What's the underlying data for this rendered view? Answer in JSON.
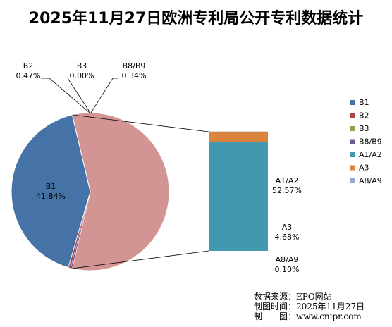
{
  "title": "2025年11月27日欧洲专利局公开专利数据统计",
  "chart_data": {
    "type": "pie",
    "categories": [
      "B1",
      "B2",
      "B3",
      "B8/B9",
      "A1/A2",
      "A3",
      "A8/A9"
    ],
    "values": [
      41.84,
      0.47,
      0.0,
      0.34,
      52.57,
      4.68,
      0.1
    ],
    "labels": [
      "41.84%",
      "0.47%",
      "0.00%",
      "0.34%",
      "52.57%",
      "4.68%",
      "0.10%"
    ],
    "colors": [
      "#4572a7",
      "#aa4643",
      "#89a54e",
      "#71588f",
      "#4198af",
      "#db843d",
      "#93a9cf"
    ],
    "aggregate_color": "#d29593",
    "breakout_categories": [
      "A1/A2",
      "A3",
      "A8/A9"
    ],
    "legend_position": "right"
  },
  "footer": {
    "source": "数据来源：EPO网站",
    "time": "制图时间：2025年11月27日",
    "maker": "制　　图：www.cnipr.com"
  }
}
